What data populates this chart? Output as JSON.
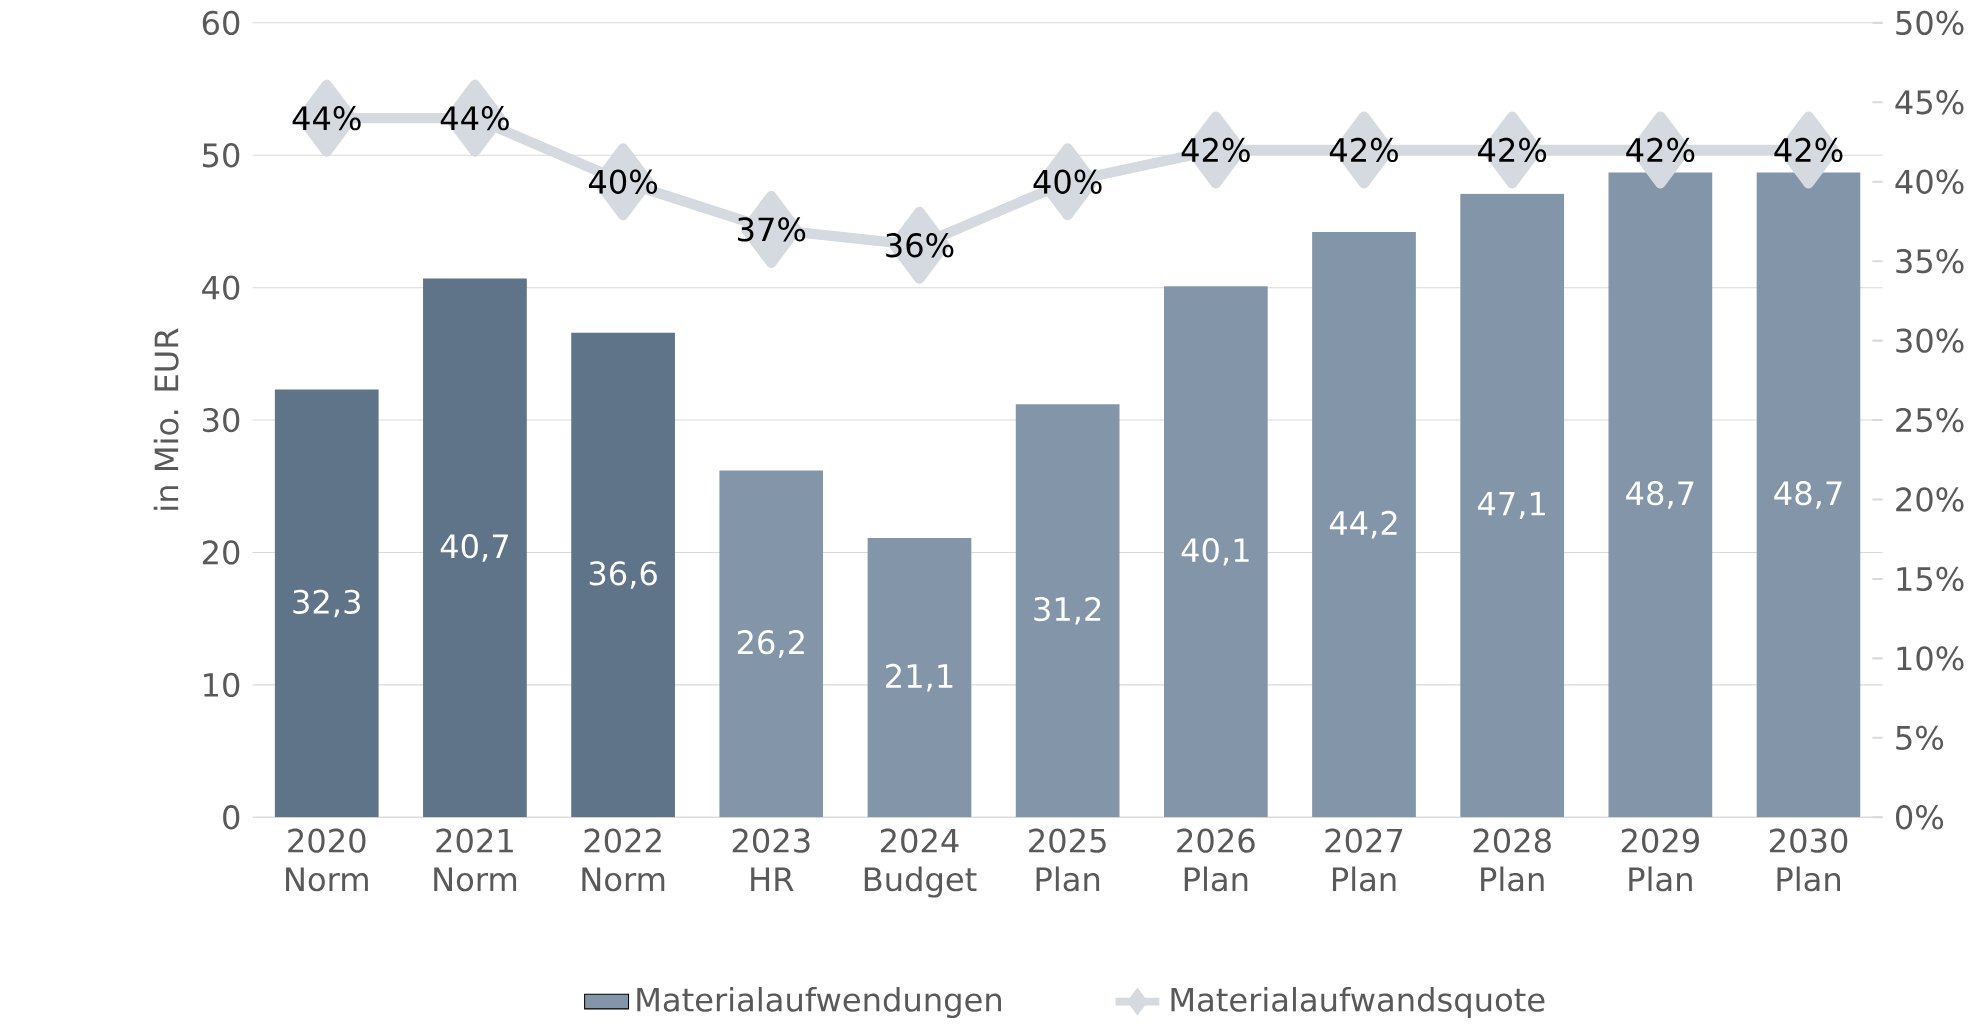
{
  "chart_data": {
    "type": "bar",
    "categories": [
      "2020 Norm",
      "2021 Norm",
      "2022 Norm",
      "2023 HR",
      "2024 Budget",
      "2025 Plan",
      "2026 Plan",
      "2027 Plan",
      "2028 Plan",
      "2029 Plan",
      "2030 Plan"
    ],
    "ylabel": "in Mio. EUR",
    "ylim": [
      0,
      60
    ],
    "yticks": [
      0,
      10,
      20,
      30,
      40,
      50,
      60
    ],
    "y2lim": [
      0,
      50
    ],
    "y2ticks": [
      {
        "value": 0,
        "label": "0%"
      },
      {
        "value": 5,
        "label": "5%"
      },
      {
        "value": 10,
        "label": "10%"
      },
      {
        "value": 15,
        "label": "15%"
      },
      {
        "value": 20,
        "label": "20%"
      },
      {
        "value": 25,
        "label": "25%"
      },
      {
        "value": 30,
        "label": "30%"
      },
      {
        "value": 35,
        "label": "35%"
      },
      {
        "value": 40,
        "label": "40%"
      },
      {
        "value": 45,
        "label": "45%"
      },
      {
        "value": 50,
        "label": "50%"
      }
    ],
    "grid": "y",
    "legend": "bottom",
    "series": [
      {
        "name": "Materialaufwendungen",
        "colors": [
          "#5f7489",
          "#5f7489",
          "#5f7489",
          "#8395a8",
          "#8395a8",
          "#8395a8",
          "#8395a8",
          "#8395a8",
          "#8395a8",
          "#8395a8",
          "#8395a8"
        ],
        "values": [
          32.3,
          40.7,
          36.6,
          26.2,
          21.1,
          31.2,
          40.1,
          44.2,
          47.1,
          48.7,
          48.7
        ],
        "value_labels": [
          "32,3",
          "40,7",
          "36,6",
          "26,2",
          "21,1",
          "31,2",
          "40,1",
          "44,2",
          "47,1",
          "48,7",
          "48,7"
        ]
      },
      {
        "name": "Materialaufwandsquote",
        "type": "line",
        "axis": "y2",
        "color": "#d5dae0",
        "marker": "diamond",
        "values": [
          44,
          44,
          40,
          37,
          36,
          40,
          42,
          42,
          42,
          42,
          42
        ],
        "value_labels": [
          "44%",
          "44%",
          "40%",
          "37%",
          "36%",
          "40%",
          "42%",
          "42%",
          "42%",
          "42%",
          "42%"
        ]
      }
    ]
  }
}
